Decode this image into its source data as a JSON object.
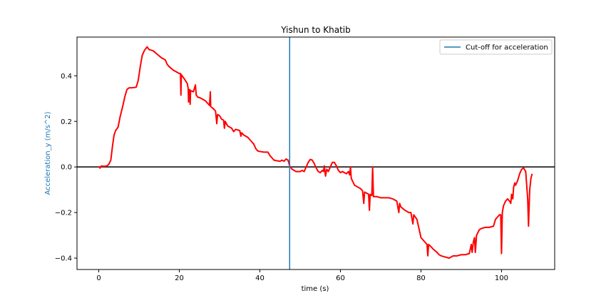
{
  "chart_data": {
    "type": "line",
    "title": "Yishun to Khatib",
    "xlabel": "time (s)",
    "ylabel": "Acceleration_y (m/s^2)",
    "ylabel_color": "#1f77b4",
    "xlim": [
      -5.4,
      113.2
    ],
    "ylim": [
      -0.45,
      0.57
    ],
    "xticks": [
      0,
      20,
      40,
      60,
      80,
      100
    ],
    "yticks": [
      -0.4,
      -0.2,
      0.0,
      0.2,
      0.4
    ],
    "ytick_labels": [
      "−0.4",
      "−0.2",
      "0.0",
      "0.2",
      "0.4"
    ],
    "grid": false,
    "legend": {
      "location": "top-right",
      "entries": [
        "Cut-off for acceleration"
      ]
    },
    "zero_line": {
      "y": 0,
      "color": "#000000"
    },
    "cutoff_line": {
      "x": 47.4,
      "color": "#1f77b4",
      "label": "Cut-off for acceleration"
    },
    "series": [
      {
        "color": "#ff0000",
        "points": [
          [
            0,
            0.003
          ],
          [
            0.3,
            -0.005
          ],
          [
            0.6,
            0.004
          ],
          [
            1.2,
            0.003
          ],
          [
            2.0,
            0.004
          ],
          [
            2.5,
            0.012
          ],
          [
            3.0,
            0.03
          ],
          [
            3.4,
            0.09
          ],
          [
            3.8,
            0.14
          ],
          [
            4.2,
            0.16
          ],
          [
            4.8,
            0.175
          ],
          [
            5.3,
            0.22
          ],
          [
            6.0,
            0.27
          ],
          [
            6.5,
            0.31
          ],
          [
            7.0,
            0.34
          ],
          [
            7.5,
            0.347
          ],
          [
            8.5,
            0.348
          ],
          [
            9.3,
            0.35
          ],
          [
            9.8,
            0.38
          ],
          [
            10.3,
            0.44
          ],
          [
            10.8,
            0.49
          ],
          [
            11.3,
            0.51
          ],
          [
            11.7,
            0.52
          ],
          [
            12.0,
            0.527
          ],
          [
            12.5,
            0.515
          ],
          [
            13.5,
            0.51
          ],
          [
            14.5,
            0.495
          ],
          [
            15.5,
            0.48
          ],
          [
            16.5,
            0.47
          ],
          [
            17.0,
            0.45
          ],
          [
            17.5,
            0.44
          ],
          [
            18.5,
            0.425
          ],
          [
            19.5,
            0.415
          ],
          [
            20.0,
            0.41
          ],
          [
            20.3,
            0.41
          ],
          [
            20.4,
            0.315
          ],
          [
            20.5,
            0.405
          ],
          [
            21.5,
            0.38
          ],
          [
            22.0,
            0.365
          ],
          [
            22.2,
            0.345
          ],
          [
            22.3,
            0.285
          ],
          [
            22.4,
            0.335
          ],
          [
            22.6,
            0.34
          ],
          [
            22.7,
            0.275
          ],
          [
            22.8,
            0.335
          ],
          [
            23.5,
            0.33
          ],
          [
            24.0,
            0.36
          ],
          [
            24.2,
            0.315
          ],
          [
            24.7,
            0.305
          ],
          [
            24.9,
            0.305
          ],
          [
            25.0,
            0.305
          ],
          [
            25.5,
            0.3
          ],
          [
            26.5,
            0.29
          ],
          [
            27.5,
            0.27
          ],
          [
            27.7,
            0.33
          ],
          [
            27.8,
            0.265
          ],
          [
            28.5,
            0.255
          ],
          [
            29.0,
            0.245
          ],
          [
            29.3,
            0.19
          ],
          [
            29.5,
            0.23
          ],
          [
            30.0,
            0.225
          ],
          [
            30.5,
            0.21
          ],
          [
            31.0,
            0.205
          ],
          [
            31.2,
            0.17
          ],
          [
            31.4,
            0.2
          ],
          [
            32.0,
            0.18
          ],
          [
            33.0,
            0.17
          ],
          [
            33.5,
            0.155
          ],
          [
            34.0,
            0.165
          ],
          [
            35.0,
            0.16
          ],
          [
            35.3,
            0.135
          ],
          [
            35.5,
            0.15
          ],
          [
            36.0,
            0.14
          ],
          [
            37.0,
            0.13
          ],
          [
            38.0,
            0.11
          ],
          [
            38.5,
            0.1
          ],
          [
            39.0,
            0.08
          ],
          [
            39.5,
            0.07
          ],
          [
            40.0,
            0.068
          ],
          [
            41.0,
            0.065
          ],
          [
            42.0,
            0.065
          ],
          [
            42.5,
            0.05
          ],
          [
            43.0,
            0.04
          ],
          [
            43.5,
            0.03
          ],
          [
            44.0,
            0.028
          ],
          [
            45.0,
            0.025
          ],
          [
            45.5,
            0.03
          ],
          [
            46.0,
            0.025
          ],
          [
            46.5,
            0.035
          ],
          [
            47.0,
            0.03
          ],
          [
            47.4,
            0.005
          ],
          [
            48.0,
            -0.01
          ],
          [
            49.0,
            -0.02
          ],
          [
            50.0,
            -0.02
          ],
          [
            50.5,
            -0.015
          ],
          [
            51.0,
            -0.02
          ],
          [
            51.5,
            0.0
          ],
          [
            52.0,
            0.02
          ],
          [
            52.5,
            0.033
          ],
          [
            53.0,
            0.03
          ],
          [
            53.5,
            0.015
          ],
          [
            54.0,
            -0.005
          ],
          [
            54.5,
            -0.02
          ],
          [
            55.0,
            -0.025
          ],
          [
            55.5,
            -0.015
          ],
          [
            55.8,
            -0.02
          ],
          [
            56.0,
            0.005
          ],
          [
            56.3,
            -0.04
          ],
          [
            56.6,
            -0.01
          ],
          [
            57.0,
            -0.02
          ],
          [
            57.5,
            0.0
          ],
          [
            58.0,
            0.02
          ],
          [
            58.5,
            0.02
          ],
          [
            59.0,
            0.005
          ],
          [
            59.5,
            -0.015
          ],
          [
            60.0,
            -0.025
          ],
          [
            60.5,
            -0.02
          ],
          [
            61.0,
            -0.025
          ],
          [
            61.5,
            -0.03
          ],
          [
            62.0,
            -0.02
          ],
          [
            62.3,
            -0.035
          ],
          [
            62.5,
            0.0
          ],
          [
            62.7,
            -0.05
          ],
          [
            63.5,
            -0.08
          ],
          [
            64.5,
            -0.09
          ],
          [
            65.0,
            -0.095
          ],
          [
            65.5,
            -0.105
          ],
          [
            65.8,
            -0.16
          ],
          [
            66.0,
            -0.11
          ],
          [
            66.5,
            -0.115
          ],
          [
            67.0,
            -0.12
          ],
          [
            67.2,
            -0.19
          ],
          [
            67.4,
            -0.12
          ],
          [
            67.8,
            -0.125
          ],
          [
            68.0,
            0.0
          ],
          [
            68.2,
            -0.13
          ],
          [
            69.0,
            -0.13
          ],
          [
            70.0,
            -0.135
          ],
          [
            71.0,
            -0.135
          ],
          [
            72.0,
            -0.135
          ],
          [
            73.0,
            -0.14
          ],
          [
            74.0,
            -0.15
          ],
          [
            74.5,
            -0.2
          ],
          [
            74.7,
            -0.16
          ],
          [
            75.0,
            -0.175
          ],
          [
            76.0,
            -0.19
          ],
          [
            77.0,
            -0.2
          ],
          [
            77.5,
            -0.2
          ],
          [
            78.0,
            -0.25
          ],
          [
            78.2,
            -0.21
          ],
          [
            79.0,
            -0.23
          ],
          [
            79.5,
            -0.27
          ],
          [
            80.0,
            -0.31
          ],
          [
            81.0,
            -0.33
          ],
          [
            81.5,
            -0.34
          ],
          [
            81.7,
            -0.39
          ],
          [
            81.9,
            -0.34
          ],
          [
            82.5,
            -0.35
          ],
          [
            83.0,
            -0.36
          ],
          [
            84.0,
            -0.375
          ],
          [
            84.5,
            -0.385
          ],
          [
            85.0,
            -0.39
          ],
          [
            86.0,
            -0.395
          ],
          [
            87.0,
            -0.4
          ],
          [
            88.0,
            -0.39
          ],
          [
            89.0,
            -0.39
          ],
          [
            90.0,
            -0.385
          ],
          [
            91.0,
            -0.385
          ],
          [
            92.0,
            -0.38
          ],
          [
            92.5,
            -0.34
          ],
          [
            92.7,
            -0.375
          ],
          [
            93.0,
            -0.33
          ],
          [
            93.3,
            -0.31
          ],
          [
            93.5,
            -0.375
          ],
          [
            93.8,
            -0.3
          ],
          [
            94.5,
            -0.275
          ],
          [
            95.0,
            -0.27
          ],
          [
            96.0,
            -0.265
          ],
          [
            97.0,
            -0.265
          ],
          [
            98.0,
            -0.26
          ],
          [
            98.5,
            -0.23
          ],
          [
            99.0,
            -0.22
          ],
          [
            99.5,
            -0.21
          ],
          [
            99.8,
            -0.21
          ],
          [
            100.0,
            -0.38
          ],
          [
            100.2,
            -0.2
          ],
          [
            100.5,
            -0.17
          ],
          [
            101.0,
            -0.15
          ],
          [
            101.5,
            -0.14
          ],
          [
            102.0,
            -0.15
          ],
          [
            102.3,
            -0.16
          ],
          [
            102.5,
            -0.12
          ],
          [
            102.8,
            -0.14
          ],
          [
            103.0,
            -0.09
          ],
          [
            103.3,
            -0.07
          ],
          [
            103.5,
            -0.08
          ],
          [
            104.0,
            -0.06
          ],
          [
            104.5,
            -0.03
          ],
          [
            105.0,
            -0.01
          ],
          [
            105.5,
            -0.005
          ],
          [
            106.0,
            -0.02
          ],
          [
            106.5,
            -0.14
          ],
          [
            106.7,
            -0.26
          ],
          [
            107.0,
            -0.1
          ],
          [
            107.3,
            -0.05
          ],
          [
            107.6,
            -0.03
          ]
        ]
      }
    ]
  }
}
